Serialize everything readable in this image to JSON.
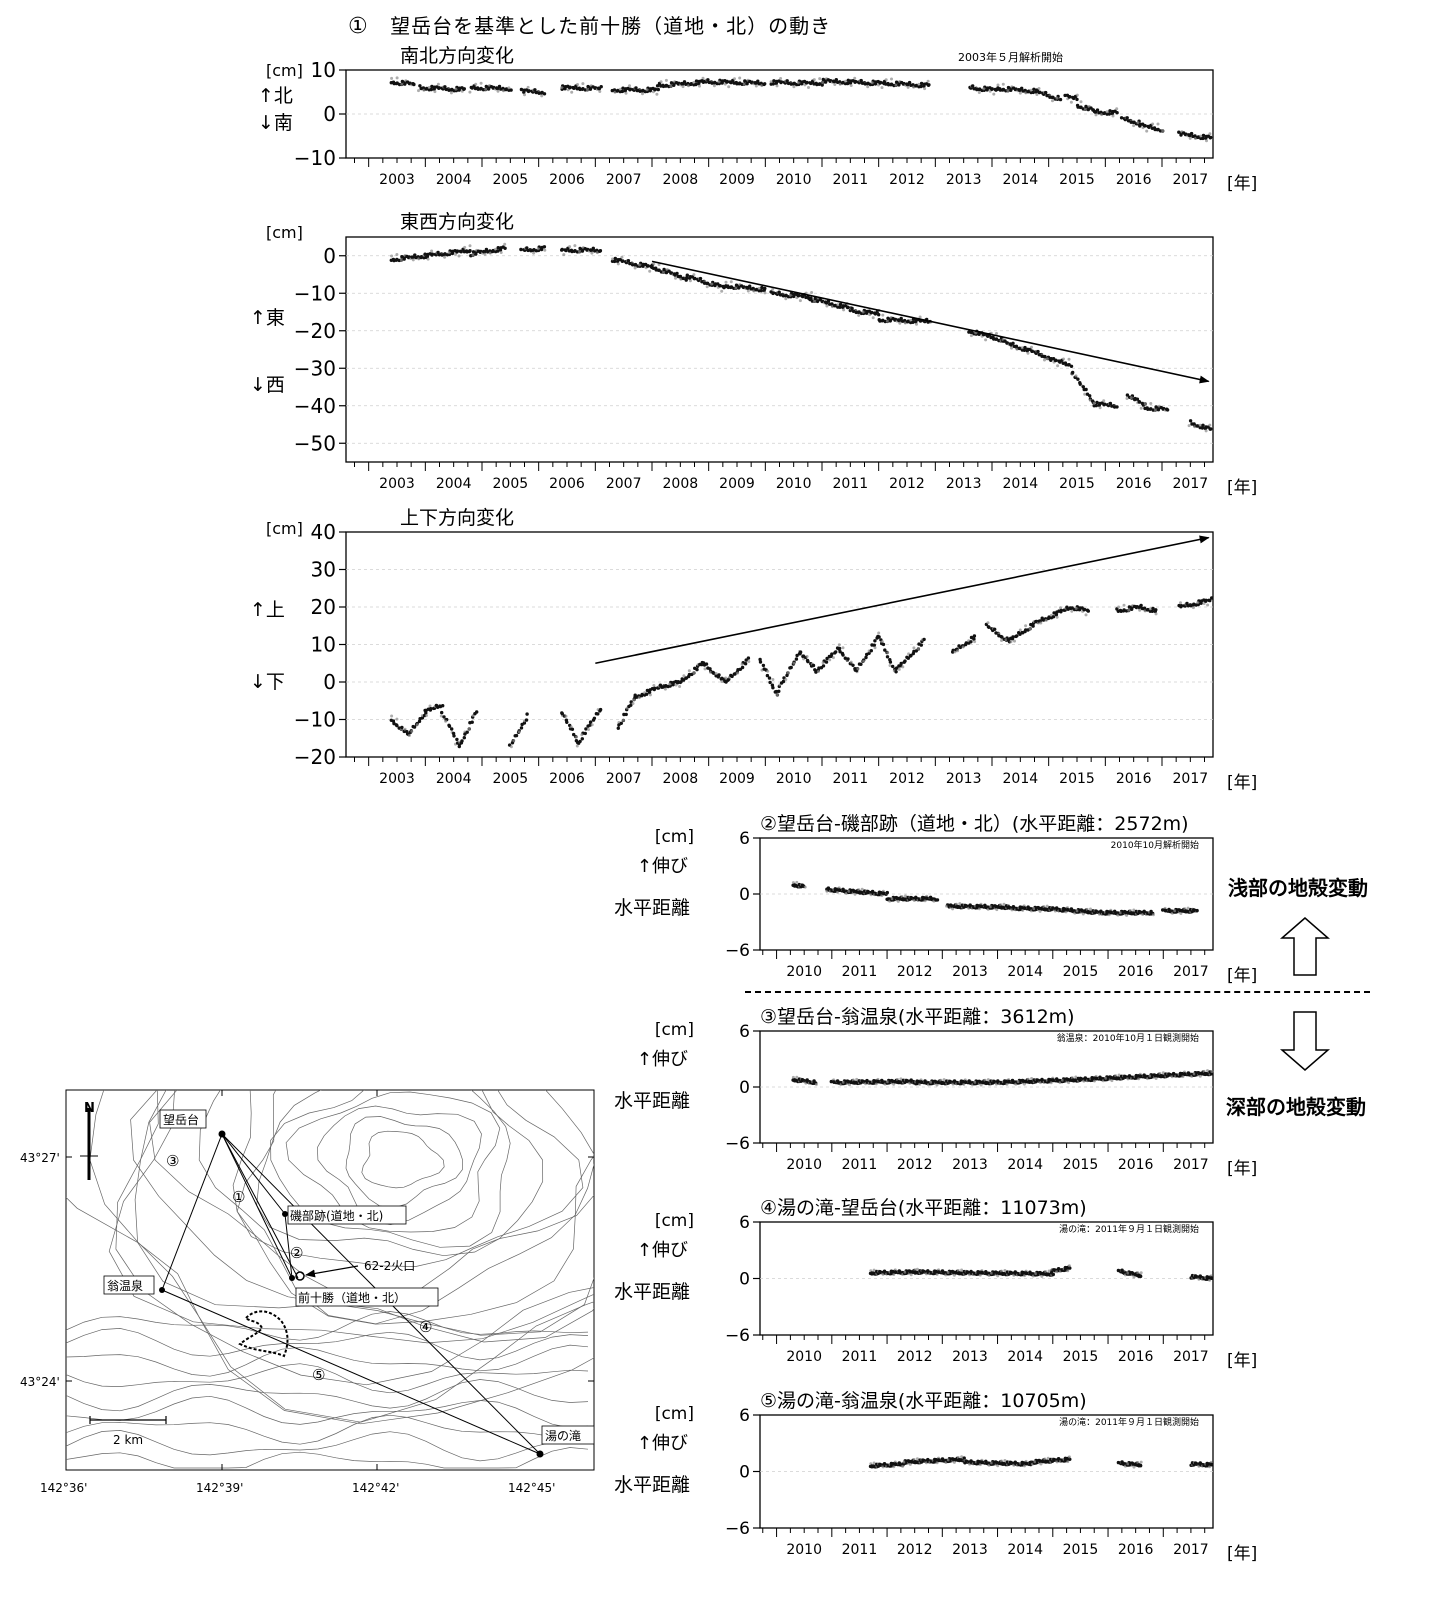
{
  "header": {
    "title_num": "①",
    "title": "望岳台を基準とした前十勝（道地・北）の動き",
    "start_note": "2003年５月解析開始"
  },
  "year_label": "[年]",
  "unit": "[cm]",
  "colors": {
    "dots": "#111111",
    "dots_light": "#8a8a8a",
    "axis": "#000000",
    "grid": "#cfcfcf"
  },
  "chart_data": [
    {
      "id": "ns",
      "type": "scatter",
      "subtitle": "南北方向変化",
      "ylabel_lines": [
        "↑北",
        "↓南"
      ],
      "ylim": [
        -10,
        10
      ],
      "yticks": [
        -10,
        0,
        10
      ],
      "xlim": [
        2002.6,
        2017.9
      ],
      "xticks": [
        2003,
        2004,
        2005,
        2006,
        2007,
        2008,
        2009,
        2010,
        2011,
        2012,
        2013,
        2014,
        2015,
        2016,
        2017
      ],
      "series": [
        {
          "segments": [
            [
              2003.4,
              2003.8,
              7.3,
              6.8
            ],
            [
              2003.9,
              2004.7,
              6.0,
              5.6
            ],
            [
              2004.8,
              2005.5,
              6.0,
              5.8
            ],
            [
              2005.7,
              2006.1,
              5.2,
              5.0
            ],
            [
              2006.4,
              2007.1,
              6.0,
              5.8
            ],
            [
              2007.3,
              2008.1,
              5.5,
              5.5
            ],
            [
              2008.1,
              2008.9,
              6.5,
              7.2
            ],
            [
              2008.9,
              2010.0,
              7.4,
              7.0
            ],
            [
              2010.1,
              2011.0,
              7.2,
              7.0
            ],
            [
              2011.0,
              2012.1,
              7.5,
              7.0
            ],
            [
              2012.1,
              2012.9,
              7.0,
              6.5
            ],
            [
              2013.6,
              2014.1,
              6.0,
              5.5
            ],
            [
              2014.1,
              2014.8,
              5.8,
              5.2
            ],
            [
              2014.8,
              2015.2,
              5.0,
              3.5
            ],
            [
              2015.3,
              2015.5,
              4.0,
              3.5
            ],
            [
              2015.5,
              2015.8,
              2.0,
              0.8
            ],
            [
              2015.8,
              2016.2,
              0.5,
              0.3
            ],
            [
              2016.3,
              2016.6,
              -1.0,
              -2.0
            ],
            [
              2016.6,
              2017.0,
              -2.5,
              -3.5
            ],
            [
              2017.3,
              2017.9,
              -4.5,
              -5.5
            ]
          ]
        }
      ],
      "trend_arrow": null
    },
    {
      "id": "ew",
      "type": "scatter",
      "subtitle": "東西方向変化",
      "ylabel_lines": [
        "↑東",
        "↓西"
      ],
      "ylim": [
        -55,
        5
      ],
      "yticks": [
        -50,
        -40,
        -30,
        -20,
        -10,
        0
      ],
      "xlim": [
        2002.6,
        2017.9
      ],
      "xticks": [
        2003,
        2004,
        2005,
        2006,
        2007,
        2008,
        2009,
        2010,
        2011,
        2012,
        2013,
        2014,
        2015,
        2016,
        2017
      ],
      "series": [
        {
          "segments": [
            [
              2003.4,
              2004.0,
              -1.0,
              0.0
            ],
            [
              2004.0,
              2004.8,
              0.0,
              1.5
            ],
            [
              2004.8,
              2005.4,
              0.5,
              2.0
            ],
            [
              2005.7,
              2006.1,
              1.5,
              2.0
            ],
            [
              2006.4,
              2007.1,
              1.5,
              1.5
            ],
            [
              2007.3,
              2008.0,
              -1.0,
              -3.0
            ],
            [
              2008.0,
              2008.6,
              -3.0,
              -6.0
            ],
            [
              2008.6,
              2009.3,
              -5.5,
              -8.5
            ],
            [
              2009.3,
              2010.0,
              -8.0,
              -9.0
            ],
            [
              2010.1,
              2010.8,
              -10.0,
              -11.0
            ],
            [
              2010.8,
              2011.5,
              -11.5,
              -14.0
            ],
            [
              2011.5,
              2012.0,
              -14.5,
              -15.5
            ],
            [
              2012.0,
              2012.9,
              -17.0,
              -17.5
            ],
            [
              2013.6,
              2014.2,
              -20.0,
              -22.5
            ],
            [
              2014.2,
              2015.0,
              -23.0,
              -27.0
            ],
            [
              2015.0,
              2015.4,
              -27.5,
              -29.0
            ],
            [
              2015.4,
              2015.8,
              -31.0,
              -39.0
            ],
            [
              2015.8,
              2016.2,
              -39.5,
              -40.0
            ],
            [
              2016.4,
              2016.7,
              -37.0,
              -40.0
            ],
            [
              2016.7,
              2017.1,
              -40.5,
              -41.0
            ],
            [
              2017.5,
              2017.9,
              -44.5,
              -46.5
            ]
          ]
        }
      ],
      "trend_arrow": [
        2008.0,
        -1.5,
        2018.0,
        -33.5
      ]
    },
    {
      "id": "ud",
      "type": "scatter",
      "subtitle": "上下方向変化",
      "ylabel_lines": [
        "↑上",
        "↓下"
      ],
      "ylim": [
        -20,
        40
      ],
      "yticks": [
        -20,
        -10,
        0,
        10,
        20,
        30,
        40
      ],
      "xlim": [
        2002.6,
        2017.9
      ],
      "xticks": [
        2003,
        2004,
        2005,
        2006,
        2007,
        2008,
        2009,
        2010,
        2011,
        2012,
        2013,
        2014,
        2015,
        2016,
        2017
      ],
      "series": [
        {
          "segments": [
            [
              2003.4,
              2003.7,
              -10.0,
              -14.0
            ],
            [
              2003.7,
              2004.0,
              -14.0,
              -8.0
            ],
            [
              2004.0,
              2004.3,
              -8.0,
              -6.0
            ],
            [
              2004.3,
              2004.6,
              -8.0,
              -17.0
            ],
            [
              2004.6,
              2004.9,
              -17.0,
              -8.0
            ],
            [
              2005.5,
              2005.8,
              -17.0,
              -9.0
            ],
            [
              2006.4,
              2006.7,
              -8.0,
              -16.0
            ],
            [
              2006.7,
              2007.1,
              -16.0,
              -7.0
            ],
            [
              2007.4,
              2007.7,
              -12.0,
              -4.0
            ],
            [
              2007.7,
              2008.2,
              -4.0,
              -1.0
            ],
            [
              2008.2,
              2008.5,
              -1.0,
              0.0
            ],
            [
              2008.5,
              2008.9,
              0.0,
              5.0
            ],
            [
              2008.9,
              2009.3,
              5.0,
              0.0
            ],
            [
              2009.3,
              2009.7,
              0.0,
              6.0
            ],
            [
              2009.9,
              2010.2,
              6.0,
              -3.0
            ],
            [
              2010.2,
              2010.6,
              -3.0,
              8.0
            ],
            [
              2010.6,
              2010.9,
              8.0,
              3.0
            ],
            [
              2010.9,
              2011.3,
              3.0,
              9.0
            ],
            [
              2011.3,
              2011.6,
              9.0,
              3.0
            ],
            [
              2011.6,
              2012.0,
              3.0,
              12.0
            ],
            [
              2012.0,
              2012.3,
              12.0,
              3.0
            ],
            [
              2012.3,
              2012.8,
              3.0,
              11.0
            ],
            [
              2013.3,
              2013.7,
              8.0,
              12.0
            ],
            [
              2013.9,
              2014.3,
              15.0,
              11.0
            ],
            [
              2014.3,
              2014.8,
              11.0,
              16.0
            ],
            [
              2014.8,
              2015.4,
              16.0,
              20.0
            ],
            [
              2015.4,
              2015.7,
              20.0,
              19.0
            ],
            [
              2016.2,
              2016.6,
              19.0,
              20.0
            ],
            [
              2016.6,
              2016.9,
              20.0,
              19.0
            ],
            [
              2017.3,
              2017.9,
              20.0,
              22.0
            ]
          ]
        }
      ],
      "trend_arrow": [
        2007.0,
        5.0,
        2018.0,
        38.5
      ]
    },
    {
      "id": "b2",
      "type": "scatter",
      "title_num": "②",
      "title": "望岳台-磯部跡（道地・北）(水平距離：2572m)",
      "note": "2010年10月解析開始",
      "ylabel_lines": [
        "[cm]",
        "↑伸び",
        "水平距離"
      ],
      "ylim": [
        -6,
        6
      ],
      "yticks": [
        -6,
        0,
        6
      ],
      "xlim": [
        2009.7,
        2017.9
      ],
      "xticks": [
        2010,
        2011,
        2012,
        2013,
        2014,
        2015,
        2016,
        2017
      ],
      "series": [
        {
          "segments": [
            [
              2010.3,
              2010.5,
              1.0,
              0.8
            ],
            [
              2010.9,
              2012.0,
              0.5,
              0.0
            ],
            [
              2012.0,
              2012.9,
              -0.5,
              -0.5
            ],
            [
              2013.1,
              2014.2,
              -1.3,
              -1.4
            ],
            [
              2014.2,
              2015.0,
              -1.5,
              -1.6
            ],
            [
              2015.0,
              2015.9,
              -1.6,
              -2.0
            ],
            [
              2015.9,
              2016.8,
              -2.0,
              -2.0
            ],
            [
              2017.0,
              2017.6,
              -1.8,
              -1.8
            ]
          ]
        }
      ]
    },
    {
      "id": "b3",
      "type": "scatter",
      "title_num": "③",
      "title": "望岳台-翁温泉(水平距離：3612m)",
      "note": "翁温泉：2010年10月１日観測開始",
      "ylabel_lines": [
        "[cm]",
        "↑伸び",
        "水平距離"
      ],
      "ylim": [
        -6,
        6
      ],
      "yticks": [
        -6,
        0,
        6
      ],
      "xlim": [
        2009.7,
        2017.9
      ],
      "xticks": [
        2010,
        2011,
        2012,
        2013,
        2014,
        2015,
        2016,
        2017
      ],
      "series": [
        {
          "segments": [
            [
              2010.3,
              2010.7,
              0.8,
              0.5
            ],
            [
              2011.0,
              2012.5,
              0.5,
              0.6
            ],
            [
              2012.5,
              2014.0,
              0.5,
              0.5
            ],
            [
              2014.0,
              2015.5,
              0.5,
              0.8
            ],
            [
              2015.5,
              2017.9,
              0.8,
              1.5
            ]
          ]
        }
      ]
    },
    {
      "id": "b4",
      "type": "scatter",
      "title_num": "④",
      "title": "湯の滝-望岳台(水平距離：11073m)",
      "note": "湯の滝：2011年９月１日観測開始",
      "ylabel_lines": [
        "[cm]",
        "↑伸び",
        "水平距離"
      ],
      "ylim": [
        -6,
        6
      ],
      "yticks": [
        -6,
        0,
        6
      ],
      "xlim": [
        2009.7,
        2017.9
      ],
      "xticks": [
        2010,
        2011,
        2012,
        2013,
        2014,
        2015,
        2016,
        2017
      ],
      "series": [
        {
          "segments": [
            [
              2011.7,
              2012.5,
              0.6,
              0.7
            ],
            [
              2012.5,
              2013.5,
              0.7,
              0.6
            ],
            [
              2013.5,
              2015.0,
              0.6,
              0.5
            ],
            [
              2015.0,
              2015.3,
              0.8,
              1.1
            ],
            [
              2016.2,
              2016.6,
              0.8,
              0.3
            ],
            [
              2017.5,
              2017.9,
              0.2,
              0.0
            ]
          ]
        }
      ]
    },
    {
      "id": "b5",
      "type": "scatter",
      "title_num": "⑤",
      "title": "湯の滝-翁温泉(水平距離：10705m)",
      "note": "湯の滝：2011年９月１日観測開始",
      "ylabel_lines": [
        "[cm]",
        "↑伸び",
        "水平距離"
      ],
      "ylim": [
        -6,
        6
      ],
      "yticks": [
        -6,
        0,
        6
      ],
      "xlim": [
        2009.7,
        2017.9
      ],
      "xticks": [
        2010,
        2011,
        2012,
        2013,
        2014,
        2015,
        2016,
        2017
      ],
      "series": [
        {
          "segments": [
            [
              2011.7,
              2012.3,
              0.6,
              0.8
            ],
            [
              2012.3,
              2013.4,
              1.0,
              1.3
            ],
            [
              2013.4,
              2014.6,
              1.0,
              0.8
            ],
            [
              2014.6,
              2015.3,
              1.0,
              1.3
            ],
            [
              2016.2,
              2016.6,
              0.9,
              0.7
            ],
            [
              2017.5,
              2017.9,
              0.8,
              0.7
            ]
          ]
        }
      ]
    }
  ],
  "side_labels": {
    "shallow": "浅部の地殻変動",
    "deep": "深部の地殻変動"
  },
  "map": {
    "north": "N",
    "lat_labels": [
      "43°27'",
      "43°24'"
    ],
    "lon_labels": [
      "142°36'",
      "142°39'",
      "142°42'",
      "142°45'"
    ],
    "scale": "2 km",
    "stations": {
      "boukaku": "望岳台",
      "isobe": "磯部跡(道地・北)",
      "okina": "翁温泉",
      "maetokachi": "前十勝（道地・北）",
      "yunotaki": "湯の滝"
    },
    "crater": "62-2火口",
    "baselines": [
      "①",
      "②",
      "③",
      "④",
      "⑤"
    ]
  }
}
